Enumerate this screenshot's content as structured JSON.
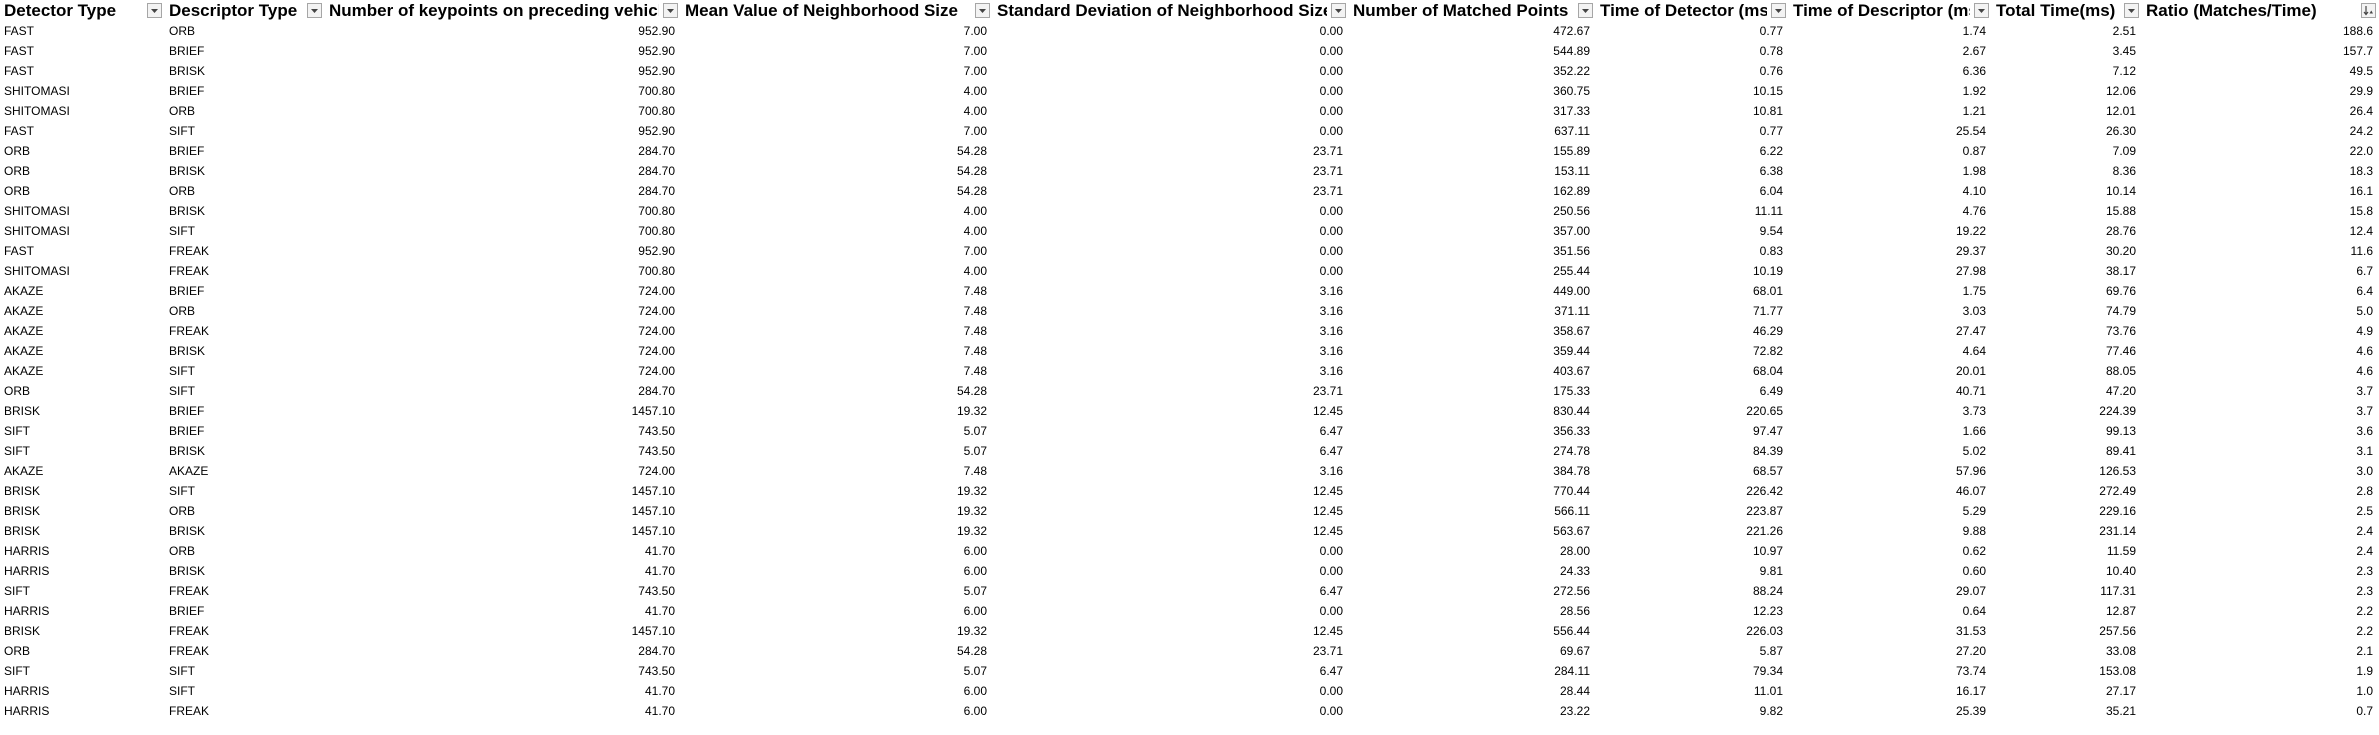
{
  "table": {
    "columns": [
      {
        "label": "Detector Type",
        "align": "left",
        "filter_icon": "chevron-down-icon"
      },
      {
        "label": "Descriptor Type",
        "align": "left",
        "filter_icon": "chevron-down-icon"
      },
      {
        "label": "Number of keypoints on preceding vehicle",
        "align": "right",
        "filter_icon": "chevron-down-icon"
      },
      {
        "label": "Mean Value of Neighborhood Size",
        "align": "right",
        "filter_icon": "chevron-down-icon"
      },
      {
        "label": "Standard Deviation of Neighborhood Size",
        "align": "right",
        "filter_icon": "chevron-down-icon"
      },
      {
        "label": "Number of Matched Points",
        "align": "right",
        "filter_icon": "chevron-down-icon"
      },
      {
        "label": "Time of Detector (ms)",
        "align": "right",
        "filter_icon": "chevron-down-icon"
      },
      {
        "label": "Time of Descriptor (ms)",
        "align": "right",
        "filter_icon": "chevron-down-icon"
      },
      {
        "label": "Total Time(ms)",
        "align": "right",
        "filter_icon": "chevron-down-icon"
      },
      {
        "label": "Ratio (Matches/Time)",
        "align": "right",
        "filter_icon": "sort-descending-icon"
      }
    ],
    "rows": [
      [
        "FAST",
        "ORB",
        "952.90",
        "7.00",
        "0.00",
        "472.67",
        "0.77",
        "1.74",
        "2.51",
        "188.6"
      ],
      [
        "FAST",
        "BRIEF",
        "952.90",
        "7.00",
        "0.00",
        "544.89",
        "0.78",
        "2.67",
        "3.45",
        "157.7"
      ],
      [
        "FAST",
        "BRISK",
        "952.90",
        "7.00",
        "0.00",
        "352.22",
        "0.76",
        "6.36",
        "7.12",
        "49.5"
      ],
      [
        "SHITOMASI",
        "BRIEF",
        "700.80",
        "4.00",
        "0.00",
        "360.75",
        "10.15",
        "1.92",
        "12.06",
        "29.9"
      ],
      [
        "SHITOMASI",
        "ORB",
        "700.80",
        "4.00",
        "0.00",
        "317.33",
        "10.81",
        "1.21",
        "12.01",
        "26.4"
      ],
      [
        "FAST",
        "SIFT",
        "952.90",
        "7.00",
        "0.00",
        "637.11",
        "0.77",
        "25.54",
        "26.30",
        "24.2"
      ],
      [
        "ORB",
        "BRIEF",
        "284.70",
        "54.28",
        "23.71",
        "155.89",
        "6.22",
        "0.87",
        "7.09",
        "22.0"
      ],
      [
        "ORB",
        "BRISK",
        "284.70",
        "54.28",
        "23.71",
        "153.11",
        "6.38",
        "1.98",
        "8.36",
        "18.3"
      ],
      [
        "ORB",
        "ORB",
        "284.70",
        "54.28",
        "23.71",
        "162.89",
        "6.04",
        "4.10",
        "10.14",
        "16.1"
      ],
      [
        "SHITOMASI",
        "BRISK",
        "700.80",
        "4.00",
        "0.00",
        "250.56",
        "11.11",
        "4.76",
        "15.88",
        "15.8"
      ],
      [
        "SHITOMASI",
        "SIFT",
        "700.80",
        "4.00",
        "0.00",
        "357.00",
        "9.54",
        "19.22",
        "28.76",
        "12.4"
      ],
      [
        "FAST",
        "FREAK",
        "952.90",
        "7.00",
        "0.00",
        "351.56",
        "0.83",
        "29.37",
        "30.20",
        "11.6"
      ],
      [
        "SHITOMASI",
        "FREAK",
        "700.80",
        "4.00",
        "0.00",
        "255.44",
        "10.19",
        "27.98",
        "38.17",
        "6.7"
      ],
      [
        "AKAZE",
        "BRIEF",
        "724.00",
        "7.48",
        "3.16",
        "449.00",
        "68.01",
        "1.75",
        "69.76",
        "6.4"
      ],
      [
        "AKAZE",
        "ORB",
        "724.00",
        "7.48",
        "3.16",
        "371.11",
        "71.77",
        "3.03",
        "74.79",
        "5.0"
      ],
      [
        "AKAZE",
        "FREAK",
        "724.00",
        "7.48",
        "3.16",
        "358.67",
        "46.29",
        "27.47",
        "73.76",
        "4.9"
      ],
      [
        "AKAZE",
        "BRISK",
        "724.00",
        "7.48",
        "3.16",
        "359.44",
        "72.82",
        "4.64",
        "77.46",
        "4.6"
      ],
      [
        "AKAZE",
        "SIFT",
        "724.00",
        "7.48",
        "3.16",
        "403.67",
        "68.04",
        "20.01",
        "88.05",
        "4.6"
      ],
      [
        "ORB",
        "SIFT",
        "284.70",
        "54.28",
        "23.71",
        "175.33",
        "6.49",
        "40.71",
        "47.20",
        "3.7"
      ],
      [
        "BRISK",
        "BRIEF",
        "1457.10",
        "19.32",
        "12.45",
        "830.44",
        "220.65",
        "3.73",
        "224.39",
        "3.7"
      ],
      [
        "SIFT",
        "BRIEF",
        "743.50",
        "5.07",
        "6.47",
        "356.33",
        "97.47",
        "1.66",
        "99.13",
        "3.6"
      ],
      [
        "SIFT",
        "BRISK",
        "743.50",
        "5.07",
        "6.47",
        "274.78",
        "84.39",
        "5.02",
        "89.41",
        "3.1"
      ],
      [
        "AKAZE",
        "AKAZE",
        "724.00",
        "7.48",
        "3.16",
        "384.78",
        "68.57",
        "57.96",
        "126.53",
        "3.0"
      ],
      [
        "BRISK",
        "SIFT",
        "1457.10",
        "19.32",
        "12.45",
        "770.44",
        "226.42",
        "46.07",
        "272.49",
        "2.8"
      ],
      [
        "BRISK",
        "ORB",
        "1457.10",
        "19.32",
        "12.45",
        "566.11",
        "223.87",
        "5.29",
        "229.16",
        "2.5"
      ],
      [
        "BRISK",
        "BRISK",
        "1457.10",
        "19.32",
        "12.45",
        "563.67",
        "221.26",
        "9.88",
        "231.14",
        "2.4"
      ],
      [
        "HARRIS",
        "ORB",
        "41.70",
        "6.00",
        "0.00",
        "28.00",
        "10.97",
        "0.62",
        "11.59",
        "2.4"
      ],
      [
        "HARRIS",
        "BRISK",
        "41.70",
        "6.00",
        "0.00",
        "24.33",
        "9.81",
        "0.60",
        "10.40",
        "2.3"
      ],
      [
        "SIFT",
        "FREAK",
        "743.50",
        "5.07",
        "6.47",
        "272.56",
        "88.24",
        "29.07",
        "117.31",
        "2.3"
      ],
      [
        "HARRIS",
        "BRIEF",
        "41.70",
        "6.00",
        "0.00",
        "28.56",
        "12.23",
        "0.64",
        "12.87",
        "2.2"
      ],
      [
        "BRISK",
        "FREAK",
        "1457.10",
        "19.32",
        "12.45",
        "556.44",
        "226.03",
        "31.53",
        "257.56",
        "2.2"
      ],
      [
        "ORB",
        "FREAK",
        "284.70",
        "54.28",
        "23.71",
        "69.67",
        "5.87",
        "27.20",
        "33.08",
        "2.1"
      ],
      [
        "SIFT",
        "SIFT",
        "743.50",
        "5.07",
        "6.47",
        "284.11",
        "79.34",
        "73.74",
        "153.08",
        "1.9"
      ],
      [
        "HARRIS",
        "SIFT",
        "41.70",
        "6.00",
        "0.00",
        "28.44",
        "11.01",
        "16.17",
        "27.17",
        "1.0"
      ],
      [
        "HARRIS",
        "FREAK",
        "41.70",
        "6.00",
        "0.00",
        "23.22",
        "9.82",
        "25.39",
        "35.21",
        "0.7"
      ]
    ]
  }
}
